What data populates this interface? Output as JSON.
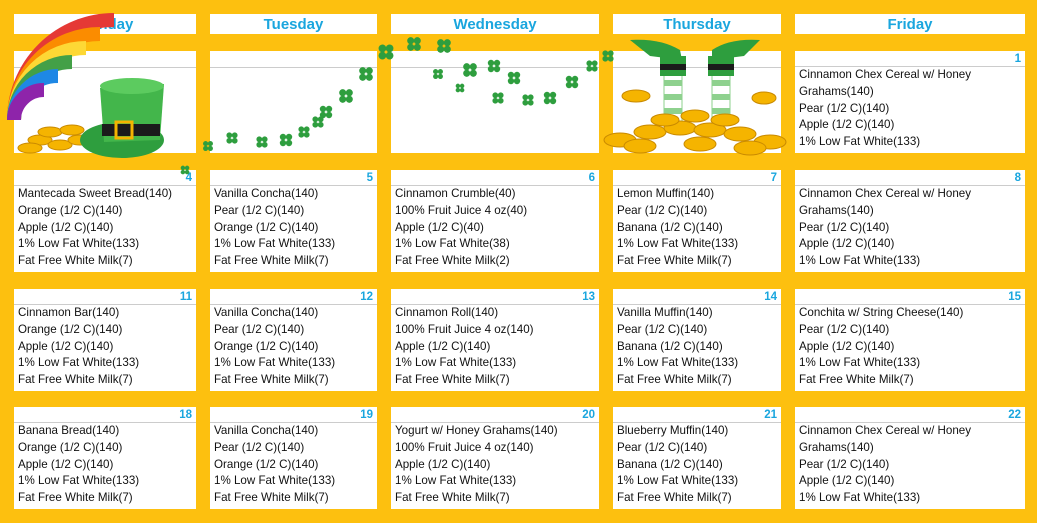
{
  "days": [
    "Monday",
    "Tuesday",
    "Wednesday",
    "Thursday",
    "Friday"
  ],
  "weeks": [
    [
      {
        "date": "",
        "items": []
      },
      {
        "date": "",
        "items": []
      },
      {
        "date": "",
        "items": []
      },
      {
        "date": "",
        "items": []
      },
      {
        "date": "1",
        "items": [
          "Cinnamon Chex Cereal w/ Honey",
          "Grahams(140)",
          "Pear (1/2 C)(140)",
          "Apple (1/2 C)(140)",
          "1% Low Fat White(133)"
        ]
      }
    ],
    [
      {
        "date": "4",
        "items": [
          "Mantecada Sweet Bread(140)",
          "Orange (1/2 C)(140)",
          "Apple (1/2 C)(140)",
          "1% Low Fat White(133)",
          "Fat Free White Milk(7)"
        ]
      },
      {
        "date": "5",
        "items": [
          "Vanilla Concha(140)",
          "Pear (1/2 C)(140)",
          "Orange (1/2 C)(140)",
          "1% Low Fat White(133)",
          "Fat Free White Milk(7)"
        ]
      },
      {
        "date": "6",
        "items": [
          "Cinnamon Crumble(40)",
          "100% Fruit Juice 4 oz(40)",
          "Apple (1/2 C)(40)",
          "1% Low Fat White(38)",
          "Fat Free White Milk(2)"
        ]
      },
      {
        "date": "7",
        "items": [
          "Lemon Muffin(140)",
          "Pear (1/2 C)(140)",
          "Banana (1/2 C)(140)",
          "1% Low Fat White(133)",
          "Fat Free White Milk(7)"
        ]
      },
      {
        "date": "8",
        "items": [
          "Cinnamon Chex Cereal w/ Honey",
          "Grahams(140)",
          "Pear (1/2 C)(140)",
          "Apple (1/2 C)(140)",
          "1% Low Fat White(133)"
        ]
      }
    ],
    [
      {
        "date": "11",
        "items": [
          "Cinnamon Bar(140)",
          "Orange (1/2 C)(140)",
          "Apple (1/2 C)(140)",
          "1% Low Fat White(133)",
          "Fat Free White Milk(7)"
        ]
      },
      {
        "date": "12",
        "items": [
          "Vanilla Concha(140)",
          "Pear (1/2 C)(140)",
          "Orange (1/2 C)(140)",
          "1% Low Fat White(133)",
          "Fat Free White Milk(7)"
        ]
      },
      {
        "date": "13",
        "items": [
          "Cinnamon Roll(140)",
          "100% Fruit Juice 4 oz(140)",
          "Apple (1/2 C)(140)",
          "1% Low Fat White(133)",
          "Fat Free White Milk(7)"
        ]
      },
      {
        "date": "14",
        "items": [
          "Vanilla Muffin(140)",
          "Pear (1/2 C)(140)",
          "Banana (1/2 C)(140)",
          "1% Low Fat White(133)",
          "Fat Free White Milk(7)"
        ]
      },
      {
        "date": "15",
        "items": [
          "Conchita w/ String Cheese(140)",
          "Pear (1/2 C)(140)",
          "Apple (1/2 C)(140)",
          "1% Low Fat White(133)",
          "Fat Free White Milk(7)"
        ]
      }
    ],
    [
      {
        "date": "18",
        "items": [
          "Banana Bread(140)",
          "Orange (1/2 C)(140)",
          "Apple (1/2 C)(140)",
          "1% Low Fat White(133)",
          "Fat Free White Milk(7)"
        ]
      },
      {
        "date": "19",
        "items": [
          "Vanilla Concha(140)",
          "Pear (1/2 C)(140)",
          "Orange (1/2 C)(140)",
          "1% Low Fat White(133)",
          "Fat Free White Milk(7)"
        ]
      },
      {
        "date": "20",
        "items": [
          "Yogurt w/ Honey Grahams(140)",
          "100% Fruit Juice 4 oz(140)",
          "Apple (1/2 C)(140)",
          "1% Low Fat White(133)",
          "Fat Free White Milk(7)"
        ]
      },
      {
        "date": "21",
        "items": [
          "Blueberry Muffin(140)",
          "Pear (1/2 C)(140)",
          "Banana (1/2 C)(140)",
          "1% Low Fat White(133)",
          "Fat Free White Milk(7)"
        ]
      },
      {
        "date": "22",
        "items": [
          "Cinnamon Chex Cereal w/ Honey",
          "Grahams(140)",
          "Pear (1/2 C)(140)",
          "Apple (1/2 C)(140)",
          "1% Low Fat White(133)"
        ]
      }
    ]
  ],
  "colors": {
    "background": "#FDC00F",
    "accent": "#1AA6DE",
    "clover": "#2E9E3E"
  },
  "decorations": [
    "rainbow-icon",
    "leprechaun-hat-icon",
    "gold-coins-icon",
    "shamrock-icon",
    "leprechaun-legs-icon"
  ]
}
